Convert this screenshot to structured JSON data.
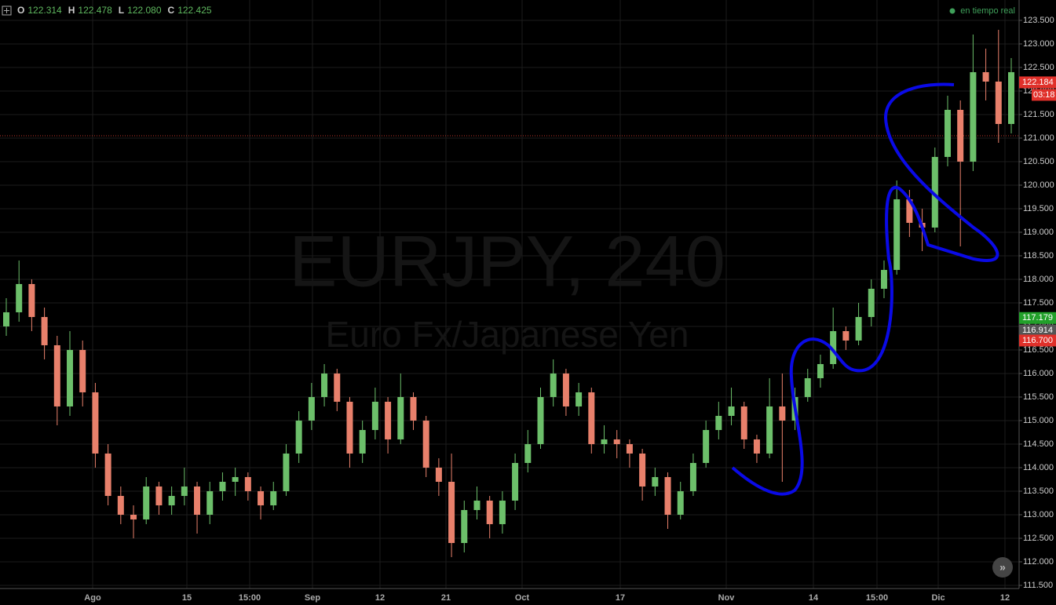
{
  "chart_data": {
    "type": "candlestick",
    "symbol": "EURJPY, 240",
    "description": "Euro Fx/Japanese Yen",
    "status": "en tiempo real",
    "ohlc": [
      {
        "name": "O",
        "value": "122.314"
      },
      {
        "name": "H",
        "value": "122.478"
      },
      {
        "name": "L",
        "value": "122.080"
      },
      {
        "name": "C",
        "value": "122.425"
      }
    ],
    "x_labels": [
      "Ago",
      "15",
      "15:00",
      "Sep",
      "12",
      "21",
      "Oct",
      "17",
      "Nov",
      "14",
      "15:00",
      "Dic",
      "12"
    ],
    "candles": [
      [
        117.0,
        117.6,
        116.8,
        117.3
      ],
      [
        117.3,
        118.4,
        117.1,
        117.9
      ],
      [
        117.9,
        118.0,
        116.9,
        117.2
      ],
      [
        117.2,
        117.4,
        116.3,
        116.6
      ],
      [
        116.6,
        116.8,
        114.9,
        115.3
      ],
      [
        115.3,
        116.9,
        115.1,
        116.5
      ],
      [
        116.5,
        116.7,
        115.3,
        115.6
      ],
      [
        115.6,
        115.8,
        114.0,
        114.3
      ],
      [
        114.3,
        114.5,
        113.2,
        113.4
      ],
      [
        113.4,
        113.6,
        112.8,
        113.0
      ],
      [
        113.0,
        113.2,
        112.5,
        112.9
      ],
      [
        112.9,
        113.8,
        112.8,
        113.6
      ],
      [
        113.6,
        113.7,
        113.0,
        113.2
      ],
      [
        113.2,
        113.6,
        113.0,
        113.4
      ],
      [
        113.4,
        114.0,
        113.2,
        113.6
      ],
      [
        113.6,
        113.7,
        112.6,
        113.0
      ],
      [
        113.0,
        113.7,
        112.8,
        113.5
      ],
      [
        113.5,
        113.9,
        113.3,
        113.7
      ],
      [
        113.7,
        114.0,
        113.4,
        113.8
      ],
      [
        113.8,
        113.9,
        113.3,
        113.5
      ],
      [
        113.5,
        113.6,
        112.9,
        113.2
      ],
      [
        113.2,
        113.7,
        113.1,
        113.5
      ],
      [
        113.5,
        114.5,
        113.4,
        114.3
      ],
      [
        114.3,
        115.2,
        114.1,
        115.0
      ],
      [
        115.0,
        115.8,
        114.8,
        115.5
      ],
      [
        115.5,
        116.2,
        115.3,
        116.0
      ],
      [
        116.0,
        116.1,
        115.2,
        115.4
      ],
      [
        115.4,
        115.5,
        114.0,
        114.3
      ],
      [
        114.3,
        115.0,
        114.1,
        114.8
      ],
      [
        114.8,
        115.7,
        114.6,
        115.4
      ],
      [
        115.4,
        115.5,
        114.3,
        114.6
      ],
      [
        114.6,
        116.0,
        114.5,
        115.5
      ],
      [
        115.5,
        115.6,
        114.8,
        115.0
      ],
      [
        115.0,
        115.1,
        113.8,
        114.0
      ],
      [
        114.0,
        114.2,
        113.4,
        113.7
      ],
      [
        113.7,
        114.3,
        112.1,
        112.4
      ],
      [
        112.4,
        113.3,
        112.2,
        113.1
      ],
      [
        113.1,
        113.6,
        112.9,
        113.3
      ],
      [
        113.3,
        113.4,
        112.5,
        112.8
      ],
      [
        112.8,
        113.5,
        112.6,
        113.3
      ],
      [
        113.3,
        114.3,
        113.1,
        114.1
      ],
      [
        114.1,
        114.8,
        113.9,
        114.5
      ],
      [
        114.5,
        115.7,
        114.4,
        115.5
      ],
      [
        115.5,
        116.3,
        115.3,
        116.0
      ],
      [
        116.0,
        116.1,
        115.1,
        115.3
      ],
      [
        115.3,
        115.8,
        115.1,
        115.6
      ],
      [
        115.6,
        115.7,
        114.3,
        114.5
      ],
      [
        114.5,
        114.9,
        114.3,
        114.6
      ],
      [
        114.6,
        114.8,
        114.2,
        114.5
      ],
      [
        114.5,
        114.6,
        114.0,
        114.3
      ],
      [
        114.3,
        114.4,
        113.3,
        113.6
      ],
      [
        113.6,
        114.0,
        113.4,
        113.8
      ],
      [
        113.8,
        113.9,
        112.7,
        113.0
      ],
      [
        113.0,
        113.7,
        112.9,
        113.5
      ],
      [
        113.5,
        114.3,
        113.4,
        114.1
      ],
      [
        114.1,
        115.0,
        114.0,
        114.8
      ],
      [
        114.8,
        115.4,
        114.6,
        115.1
      ],
      [
        115.1,
        115.7,
        114.9,
        115.3
      ],
      [
        115.3,
        115.4,
        114.4,
        114.6
      ],
      [
        114.6,
        114.7,
        114.1,
        114.3
      ],
      [
        114.3,
        115.9,
        114.2,
        115.3
      ],
      [
        115.3,
        116.0,
        113.7,
        115.0
      ],
      [
        115.0,
        115.7,
        114.8,
        115.5
      ],
      [
        115.5,
        116.1,
        115.4,
        115.9
      ],
      [
        115.9,
        116.4,
        115.7,
        116.2
      ],
      [
        116.2,
        117.4,
        116.1,
        116.9
      ],
      [
        116.9,
        117.0,
        116.5,
        116.7
      ],
      [
        116.7,
        117.5,
        116.6,
        117.2
      ],
      [
        117.2,
        118.0,
        117.0,
        117.8
      ],
      [
        117.8,
        118.4,
        117.6,
        118.2
      ],
      [
        118.2,
        120.1,
        118.1,
        119.7
      ],
      [
        119.7,
        119.9,
        118.9,
        119.2
      ],
      [
        119.2,
        119.5,
        118.6,
        119.1
      ],
      [
        119.1,
        120.8,
        119.0,
        120.6
      ],
      [
        120.6,
        121.9,
        120.4,
        121.6
      ],
      [
        121.6,
        121.8,
        118.7,
        120.5
      ],
      [
        120.5,
        123.2,
        120.3,
        122.4
      ],
      [
        122.4,
        122.9,
        121.8,
        122.2
      ],
      [
        122.2,
        123.3,
        120.9,
        121.3
      ],
      [
        121.3,
        122.7,
        121.1,
        122.4
      ]
    ],
    "up_color": "#6cbf6a",
    "down_color": "#e8806b",
    "ylim": [
      111.433,
      123.933
    ],
    "yticks": [
      {
        "value": 111.5,
        "label": "111.500"
      },
      {
        "value": 112,
        "label": "112.000"
      },
      {
        "value": 112.5,
        "label": "112.500"
      },
      {
        "value": 113,
        "label": "113.000"
      },
      {
        "value": 113.5,
        "label": "113.500"
      },
      {
        "value": 114,
        "label": "114.000"
      },
      {
        "value": 114.5,
        "label": "114.500"
      },
      {
        "value": 115,
        "label": "115.000"
      },
      {
        "value": 115.5,
        "label": "115.500"
      },
      {
        "value": 116,
        "label": "116.000"
      },
      {
        "value": 116.5,
        "label": "116.500"
      },
      {
        "value": 117,
        "label": "117.000"
      },
      {
        "value": 117.5,
        "label": "117.500"
      },
      {
        "value": 118,
        "label": "118.000"
      },
      {
        "value": 118.5,
        "label": "118.500"
      },
      {
        "value": 119,
        "label": "119.000"
      },
      {
        "value": 119.5,
        "label": "119.500"
      },
      {
        "value": 120,
        "label": "120.000"
      },
      {
        "value": 120.5,
        "label": "120.500"
      },
      {
        "value": 121,
        "label": "121.000"
      },
      {
        "value": 121.5,
        "label": "121.500"
      },
      {
        "value": 122,
        "label": "122.000"
      },
      {
        "value": 122.5,
        "label": "122.500"
      },
      {
        "value": 123,
        "label": "123.000"
      },
      {
        "value": 123.5,
        "label": "123.500"
      }
    ],
    "hline": 121.05,
    "price_tags": [
      {
        "value": 122.184,
        "label": "122.184",
        "color": "#e0302a"
      },
      {
        "value": 117.179,
        "label": "117.179",
        "color": "#22a02a"
      },
      {
        "value": 116.914,
        "label": "116.914",
        "color": "#555555"
      },
      {
        "value": 116.7,
        "label": "116.700",
        "color": "#e0302a"
      }
    ],
    "countdown": "03:18",
    "grid": true
  }
}
